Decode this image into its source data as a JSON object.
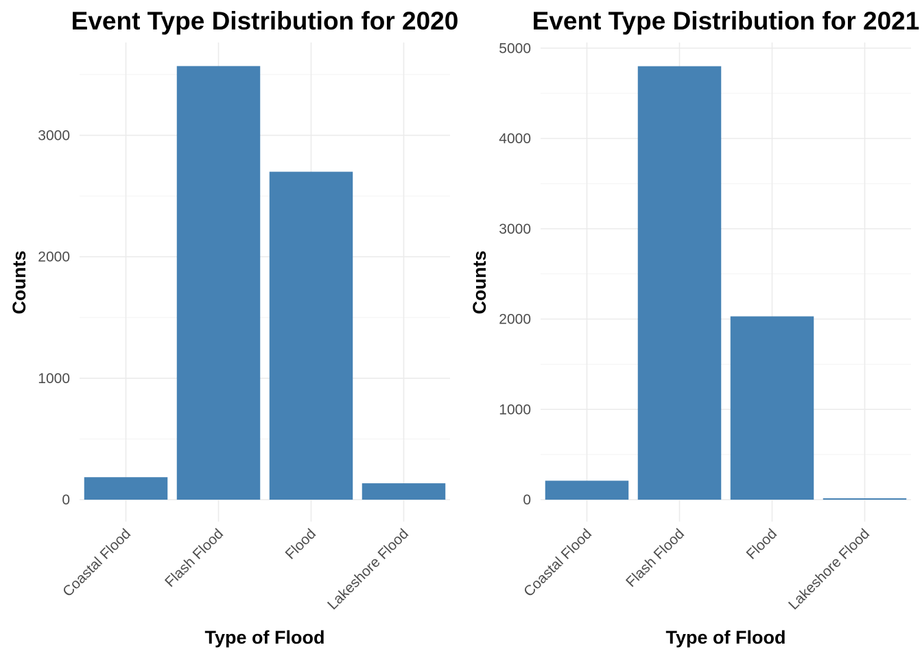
{
  "chart_data": [
    {
      "type": "bar",
      "title": "Event Type Distribution for 2020",
      "xlabel": "Type of Flood",
      "ylabel": "Counts",
      "categories": [
        "Coastal Flood",
        "Flash Flood",
        "Flood",
        "Lakeshore Flood"
      ],
      "values": [
        185,
        3570,
        2700,
        135
      ],
      "yticks": [
        0,
        1000,
        2000,
        3000
      ],
      "ylim": [
        0,
        3750
      ],
      "bar_color": "#4682b4",
      "grid": true,
      "legend": "none"
    },
    {
      "type": "bar",
      "title": "Event Type Distribution for 2021",
      "xlabel": "Type of Flood",
      "ylabel": "Counts",
      "categories": [
        "Coastal Flood",
        "Flash Flood",
        "Flood",
        "Lakeshore Flood"
      ],
      "values": [
        210,
        4800,
        2030,
        15
      ],
      "yticks": [
        0,
        1000,
        2000,
        3000,
        4000,
        5000
      ],
      "ylim": [
        0,
        5000
      ],
      "bar_color": "#4682b4",
      "grid": true,
      "legend": "none"
    }
  ]
}
